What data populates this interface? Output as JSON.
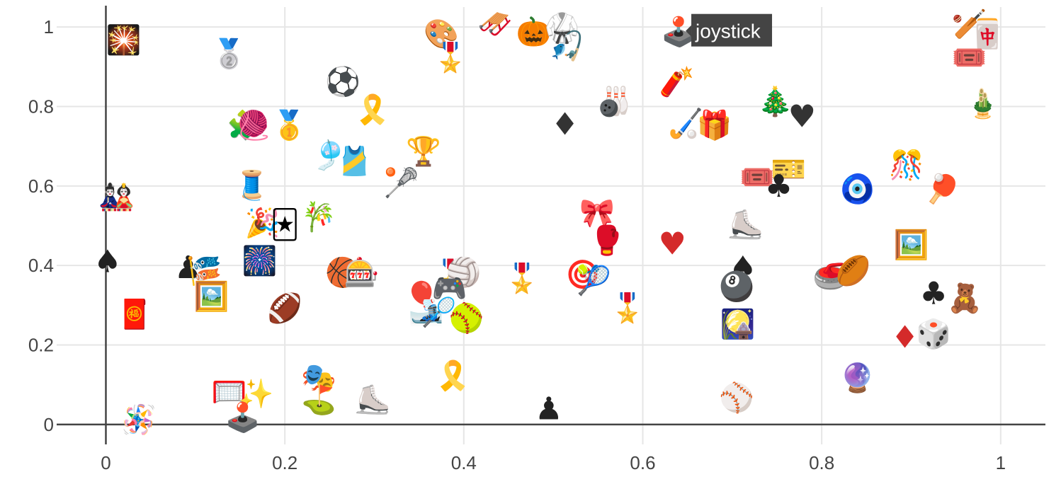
{
  "chart_data": {
    "type": "scatter",
    "title": "",
    "xlabel": "",
    "ylabel": "",
    "xlim": [
      -0.055,
      1.05
    ],
    "ylim": [
      -0.05,
      1.05
    ],
    "xticks": [
      0,
      0.2,
      0.4,
      0.6,
      0.8,
      1
    ],
    "xtick_labels": [
      "0",
      "0.2",
      "0.4",
      "0.6",
      "0.8",
      "1"
    ],
    "yticks": [
      0,
      0.2,
      0.4,
      0.6,
      0.8,
      1
    ],
    "ytick_labels": [
      "0",
      "0.2",
      "0.4",
      "0.6",
      "0.8",
      "1"
    ],
    "grid": true,
    "hover": {
      "label": "joystick",
      "x": 0.64,
      "y": 0.99
    },
    "points": [
      {
        "x": 0.02,
        "y": 0.97,
        "e": "🎇",
        "name": "fireworks"
      },
      {
        "x": 0.138,
        "y": 0.935,
        "e": "🥈",
        "name": "2nd place medal"
      },
      {
        "x": 0.265,
        "y": 0.865,
        "e": "⚽",
        "name": "soccer ball"
      },
      {
        "x": 0.375,
        "y": 0.985,
        "e": "🎨",
        "name": "artist palette"
      },
      {
        "x": 0.385,
        "y": 0.925,
        "e": "🎖️",
        "name": "medal"
      },
      {
        "x": 0.435,
        "y": 1.01,
        "e": "🛷",
        "name": "sled"
      },
      {
        "x": 0.478,
        "y": 0.99,
        "e": "🎃",
        "name": "jack-o-lantern"
      },
      {
        "x": 0.51,
        "y": 1.0,
        "e": "🥋",
        "name": "martial arts uniform"
      },
      {
        "x": 0.515,
        "y": 0.955,
        "e": "🎣",
        "name": "fishing pole"
      },
      {
        "x": 0.64,
        "y": 0.99,
        "e": "🕹️",
        "name": "joystick"
      },
      {
        "x": 0.965,
        "y": 1.01,
        "e": "🏏",
        "name": "cricket game"
      },
      {
        "x": 0.985,
        "y": 0.985,
        "e": "🀄",
        "name": "mahjong red dragon"
      },
      {
        "x": 0.965,
        "y": 0.925,
        "e": "🎟️",
        "name": "admission tickets"
      },
      {
        "x": 0.298,
        "y": 0.795,
        "e": "🎗️",
        "name": "reminder ribbon"
      },
      {
        "x": 0.155,
        "y": 0.755,
        "e": "🧩",
        "name": "puzzle piece"
      },
      {
        "x": 0.165,
        "y": 0.755,
        "e": "🧶",
        "name": "yarn"
      },
      {
        "x": 0.205,
        "y": 0.755,
        "e": "🥇",
        "name": "1st place medal"
      },
      {
        "x": 0.568,
        "y": 0.815,
        "e": "🎳",
        "name": "bowling"
      },
      {
        "x": 0.513,
        "y": 0.755,
        "e": "♦",
        "name": "diamond suit"
      },
      {
        "x": 0.638,
        "y": 0.865,
        "e": "🧨",
        "name": "firecracker"
      },
      {
        "x": 0.648,
        "y": 0.76,
        "e": "🏑",
        "name": "field hockey"
      },
      {
        "x": 0.68,
        "y": 0.755,
        "e": "🎁",
        "name": "wrapped gift"
      },
      {
        "x": 0.748,
        "y": 0.815,
        "e": "🎄",
        "name": "Christmas tree"
      },
      {
        "x": 0.778,
        "y": 0.775,
        "e": "♥",
        "name": "heart suit"
      },
      {
        "x": 0.98,
        "y": 0.81,
        "e": "🎍",
        "name": "pine decoration"
      },
      {
        "x": 0.25,
        "y": 0.68,
        "e": "🎐",
        "name": "wind chime"
      },
      {
        "x": 0.278,
        "y": 0.665,
        "e": "🎽",
        "name": "running shirt"
      },
      {
        "x": 0.355,
        "y": 0.69,
        "e": "🏆",
        "name": "trophy"
      },
      {
        "x": 0.33,
        "y": 0.61,
        "e": "🥍",
        "name": "lacrosse"
      },
      {
        "x": 0.163,
        "y": 0.605,
        "e": "🧵",
        "name": "thread"
      },
      {
        "x": 0.728,
        "y": 0.625,
        "e": "🎟️",
        "name": "admission tickets"
      },
      {
        "x": 0.763,
        "y": 0.645,
        "e": "🎫",
        "name": "ticket"
      },
      {
        "x": 0.752,
        "y": 0.6,
        "e": "♣",
        "name": "club suit"
      },
      {
        "x": 0.84,
        "y": 0.595,
        "e": "🧿",
        "name": "nazar amulet"
      },
      {
        "x": 0.895,
        "y": 0.655,
        "e": "🎊",
        "name": "confetti ball"
      },
      {
        "x": 0.935,
        "y": 0.595,
        "e": "🏓",
        "name": "ping pong"
      },
      {
        "x": 0.012,
        "y": 0.575,
        "e": "🎎",
        "name": "Japanese dolls"
      },
      {
        "x": 0.175,
        "y": 0.51,
        "e": "🎉",
        "name": "party popper"
      },
      {
        "x": 0.2,
        "y": 0.505,
        "e": "🃏",
        "name": "joker"
      },
      {
        "x": 0.238,
        "y": 0.525,
        "e": "🎋",
        "name": "tanabata tree"
      },
      {
        "x": 0.549,
        "y": 0.535,
        "e": "🎀",
        "name": "ribbon"
      },
      {
        "x": 0.56,
        "y": 0.465,
        "e": "🥊",
        "name": "boxing glove"
      },
      {
        "x": 0.633,
        "y": 0.455,
        "e": "♥",
        "name": "heart suit"
      },
      {
        "x": 0.715,
        "y": 0.505,
        "e": "⛸️",
        "name": "ice skate"
      },
      {
        "x": 0.9,
        "y": 0.455,
        "e": "🖼️",
        "name": "framed picture"
      },
      {
        "x": 0.002,
        "y": 0.41,
        "e": "♠",
        "name": "spade suit"
      },
      {
        "x": 0.092,
        "y": 0.395,
        "e": "♟",
        "name": "chess pawn"
      },
      {
        "x": 0.11,
        "y": 0.39,
        "e": "🎏",
        "name": "carp streamer"
      },
      {
        "x": 0.118,
        "y": 0.325,
        "e": "🖼️",
        "name": "framed picture"
      },
      {
        "x": 0.172,
        "y": 0.415,
        "e": "🎆",
        "name": "fireworks"
      },
      {
        "x": 0.265,
        "y": 0.385,
        "e": "🏀",
        "name": "basketball"
      },
      {
        "x": 0.286,
        "y": 0.385,
        "e": "🎰",
        "name": "slot machine"
      },
      {
        "x": 0.385,
        "y": 0.38,
        "e": "🎖️",
        "name": "medal"
      },
      {
        "x": 0.4,
        "y": 0.385,
        "e": "🏐",
        "name": "volleyball"
      },
      {
        "x": 0.384,
        "y": 0.345,
        "e": "🎮",
        "name": "video game"
      },
      {
        "x": 0.353,
        "y": 0.325,
        "e": "🎈",
        "name": "balloon"
      },
      {
        "x": 0.358,
        "y": 0.285,
        "e": "🎿",
        "name": "skis"
      },
      {
        "x": 0.372,
        "y": 0.285,
        "e": "🏸",
        "name": "badminton"
      },
      {
        "x": 0.403,
        "y": 0.27,
        "e": "🥎",
        "name": "softball"
      },
      {
        "x": 0.465,
        "y": 0.37,
        "e": "🎖️",
        "name": "medal"
      },
      {
        "x": 0.533,
        "y": 0.38,
        "e": "🎯",
        "name": "direct hit"
      },
      {
        "x": 0.545,
        "y": 0.365,
        "e": "🎾",
        "name": "tennis"
      },
      {
        "x": 0.583,
        "y": 0.295,
        "e": "🎖️",
        "name": "medal"
      },
      {
        "x": 0.712,
        "y": 0.395,
        "e": "♠",
        "name": "spade suit"
      },
      {
        "x": 0.705,
        "y": 0.35,
        "e": "🎱",
        "name": "pool 8 ball"
      },
      {
        "x": 0.81,
        "y": 0.375,
        "e": "🥌",
        "name": "curling stone"
      },
      {
        "x": 0.835,
        "y": 0.39,
        "e": "🏉",
        "name": "rugby football"
      },
      {
        "x": 0.706,
        "y": 0.255,
        "e": "🎑",
        "name": "moon viewing ceremony"
      },
      {
        "x": 0.925,
        "y": 0.33,
        "e": "♣",
        "name": "club suit"
      },
      {
        "x": 0.96,
        "y": 0.32,
        "e": "🧸",
        "name": "teddy bear"
      },
      {
        "x": 0.893,
        "y": 0.22,
        "e": "♦",
        "name": "diamond suit"
      },
      {
        "x": 0.925,
        "y": 0.23,
        "e": "🎲",
        "name": "game die"
      },
      {
        "x": 0.032,
        "y": 0.28,
        "e": "🧧",
        "name": "red envelope"
      },
      {
        "x": 0.2,
        "y": 0.295,
        "e": "🏈",
        "name": "american football"
      },
      {
        "x": 0.238,
        "y": 0.12,
        "e": "🎭",
        "name": "performing arts"
      },
      {
        "x": 0.238,
        "y": 0.065,
        "e": "⛳",
        "name": "flag in hole"
      },
      {
        "x": 0.138,
        "y": 0.085,
        "e": "🥅",
        "name": "goal net"
      },
      {
        "x": 0.168,
        "y": 0.08,
        "e": "✨",
        "name": "sparkles"
      },
      {
        "x": 0.298,
        "y": 0.065,
        "e": "⛸️",
        "name": "ice skate"
      },
      {
        "x": 0.388,
        "y": 0.125,
        "e": "🎗️",
        "name": "reminder ribbon"
      },
      {
        "x": 0.495,
        "y": 0.04,
        "e": "♟",
        "name": "chess pawn"
      },
      {
        "x": 0.705,
        "y": 0.07,
        "e": "⚾",
        "name": "baseball"
      },
      {
        "x": 0.84,
        "y": 0.12,
        "e": "🔮",
        "name": "crystal ball"
      },
      {
        "x": 0.037,
        "y": 0.015,
        "e": "🪅",
        "name": "card"
      },
      {
        "x": 0.153,
        "y": 0.02,
        "e": "🕹️",
        "name": "joystick"
      }
    ]
  }
}
